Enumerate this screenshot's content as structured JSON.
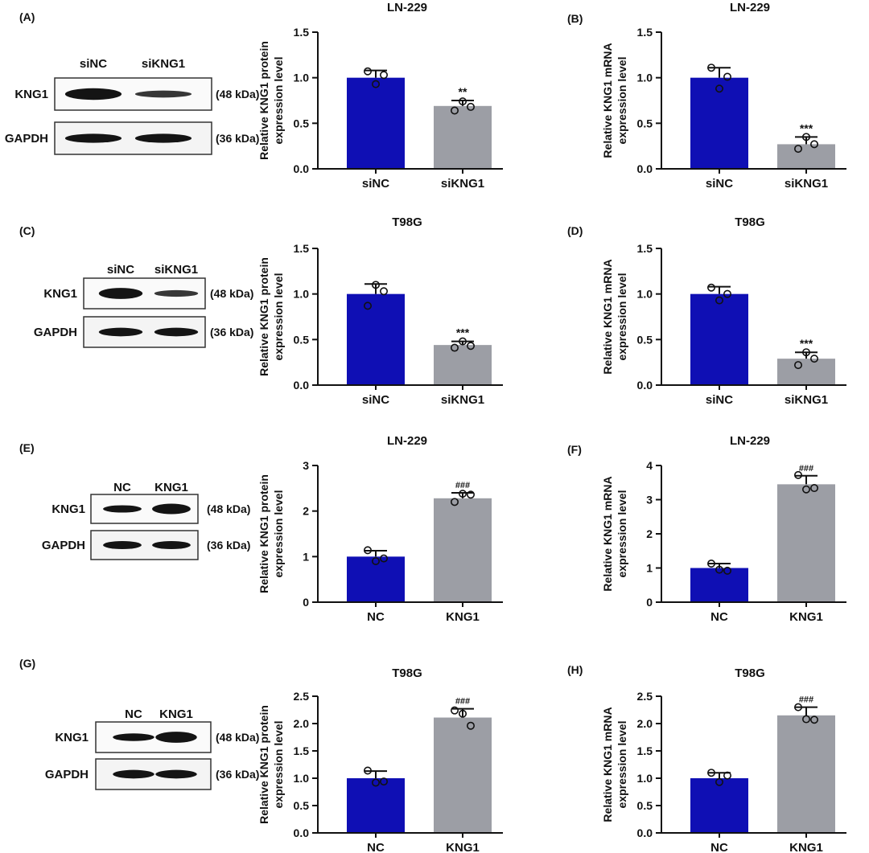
{
  "colors": {
    "control": "#0f0fb4",
    "treatment": "#9c9ea5",
    "band": "#141414"
  },
  "blot_labels": {
    "kng1_size": "(48 kDa)",
    "gapdh_size": "(36 kDa)"
  },
  "panels": [
    {
      "letter": "(A)",
      "kind": "blot",
      "lanes": [
        "siNC",
        "siKNG1"
      ],
      "rows": [
        "KNG1",
        "GAPDH"
      ]
    },
    {
      "letter": "(C)",
      "kind": "blot",
      "lanes": [
        "siNC",
        "siKNG1"
      ],
      "rows": [
        "KNG1",
        "GAPDH"
      ]
    },
    {
      "letter": "(E)",
      "kind": "blot",
      "lanes": [
        "NC",
        "KNG1"
      ],
      "rows": [
        "KNG1",
        "GAPDH"
      ]
    },
    {
      "letter": "(G)",
      "kind": "blot",
      "lanes": [
        "NC",
        "KNG1"
      ],
      "rows": [
        "KNG1",
        "GAPDH"
      ]
    }
  ],
  "chart_data": [
    {
      "letter": "",
      "type": "bar",
      "title": "LN-229",
      "categories": [
        "siNC",
        "siKNG1"
      ],
      "values": [
        1.0,
        0.69
      ],
      "errors": [
        0.08,
        0.06
      ],
      "points": [
        [
          1.07,
          0.93,
          1.03
        ],
        [
          0.64,
          0.74,
          0.68
        ]
      ],
      "sig": "**",
      "ylabel": [
        "Relative KNG1 protein",
        "expression level"
      ],
      "ylim": [
        0,
        1.5
      ],
      "ticks": [
        0.0,
        0.5,
        1.0,
        1.5
      ]
    },
    {
      "letter": "(B)",
      "type": "bar",
      "title": "LN-229",
      "categories": [
        "siNC",
        "siKNG1"
      ],
      "values": [
        1.0,
        0.27
      ],
      "errors": [
        0.11,
        0.08
      ],
      "points": [
        [
          1.11,
          0.88,
          1.01
        ],
        [
          0.22,
          0.35,
          0.27
        ]
      ],
      "sig": "***",
      "ylabel": [
        "Relative KNG1 mRNA",
        "expression level"
      ],
      "ylim": [
        0,
        1.5
      ],
      "ticks": [
        0.0,
        0.5,
        1.0,
        1.5
      ]
    },
    {
      "letter": "",
      "type": "bar",
      "title": "T98G",
      "categories": [
        "siNC",
        "siKNG1"
      ],
      "values": [
        1.0,
        0.44
      ],
      "errors": [
        0.11,
        0.04
      ],
      "points": [
        [
          0.87,
          1.1,
          1.03
        ],
        [
          0.41,
          0.48,
          0.43
        ]
      ],
      "sig": "***",
      "ylabel": [
        "Relative KNG1 protein",
        "expression level"
      ],
      "ylim": [
        0,
        1.5
      ],
      "ticks": [
        0.0,
        0.5,
        1.0,
        1.5
      ]
    },
    {
      "letter": "(D)",
      "type": "bar",
      "title": "T98G",
      "categories": [
        "siNC",
        "siKNG1"
      ],
      "values": [
        1.0,
        0.29
      ],
      "errors": [
        0.08,
        0.07
      ],
      "points": [
        [
          1.07,
          0.93,
          1.0
        ],
        [
          0.22,
          0.36,
          0.29
        ]
      ],
      "sig": "***",
      "ylabel": [
        "Relative KNG1 mRNA",
        "expression level"
      ],
      "ylim": [
        0,
        1.5
      ],
      "ticks": [
        0.0,
        0.5,
        1.0,
        1.5
      ]
    },
    {
      "letter": "",
      "type": "bar",
      "title": "LN-229",
      "categories": [
        "NC",
        "KNG1"
      ],
      "values": [
        1.0,
        2.28
      ],
      "errors": [
        0.13,
        0.12
      ],
      "points": [
        [
          1.14,
          0.9,
          0.96
        ],
        [
          2.2,
          2.38,
          2.36
        ]
      ],
      "sig": "###",
      "ylabel": [
        "Relative KNG1 protein",
        "expression level"
      ],
      "ylim": [
        0,
        3
      ],
      "ticks": [
        0,
        1,
        2,
        3
      ]
    },
    {
      "letter": "(F)",
      "type": "bar",
      "title": "LN-229",
      "categories": [
        "NC",
        "KNG1"
      ],
      "values": [
        1.0,
        3.45
      ],
      "errors": [
        0.13,
        0.25
      ],
      "points": [
        [
          1.13,
          0.95,
          0.92
        ],
        [
          3.72,
          3.3,
          3.34
        ]
      ],
      "sig": "###",
      "ylabel": [
        "Relative KNG1 mRNA",
        "expression level"
      ],
      "ylim": [
        0,
        4
      ],
      "ticks": [
        0,
        1,
        2,
        3,
        4
      ]
    },
    {
      "letter": "",
      "type": "bar",
      "title": "T98G",
      "categories": [
        "NC",
        "KNG1"
      ],
      "values": [
        1.0,
        2.11
      ],
      "errors": [
        0.13,
        0.16
      ],
      "points": [
        [
          1.14,
          0.92,
          0.94
        ],
        [
          2.24,
          2.18,
          1.96
        ]
      ],
      "sig": "###",
      "ylabel": [
        "Relative KNG1 protein",
        "expression level"
      ],
      "ylim": [
        0,
        2.5
      ],
      "ticks": [
        0.0,
        0.5,
        1.0,
        1.5,
        2.0,
        2.5
      ]
    },
    {
      "letter": "(H)",
      "type": "bar",
      "title": "T98G",
      "categories": [
        "NC",
        "KNG1"
      ],
      "values": [
        1.0,
        2.15
      ],
      "errors": [
        0.1,
        0.15
      ],
      "points": [
        [
          1.1,
          0.93,
          1.05
        ],
        [
          2.3,
          2.08,
          2.07
        ]
      ],
      "sig": "###",
      "ylabel": [
        "Relative KNG1 mRNA",
        "expression level"
      ],
      "ylim": [
        0,
        2.5
      ],
      "ticks": [
        0.0,
        0.5,
        1.0,
        1.5,
        2.0,
        2.5
      ]
    }
  ]
}
